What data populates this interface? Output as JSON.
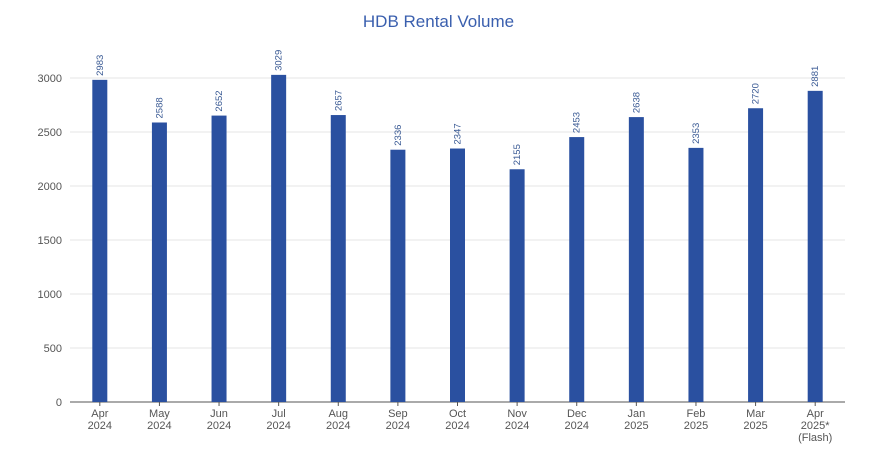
{
  "chart_data": {
    "type": "bar",
    "title": "HDB Rental Volume",
    "xlabel": "",
    "ylabel": "",
    "ylim": [
      0,
      3000
    ],
    "yticks": [
      0,
      500,
      1000,
      1500,
      2000,
      2500,
      3000
    ],
    "grid": true,
    "categories": [
      [
        "Apr",
        "2024"
      ],
      [
        "May",
        "2024"
      ],
      [
        "Jun",
        "2024"
      ],
      [
        "Jul",
        "2024"
      ],
      [
        "Aug",
        "2024"
      ],
      [
        "Sep",
        "2024"
      ],
      [
        "Oct",
        "2024"
      ],
      [
        "Nov",
        "2024"
      ],
      [
        "Dec",
        "2024"
      ],
      [
        "Jan",
        "2025"
      ],
      [
        "Feb",
        "2025"
      ],
      [
        "Mar",
        "2025"
      ],
      [
        "Apr",
        "2025*",
        "(Flash)"
      ]
    ],
    "values": [
      2983,
      2588,
      2652,
      3029,
      2657,
      2336,
      2347,
      2155,
      2453,
      2638,
      2353,
      2720,
      2881
    ],
    "colors": {
      "bar": "#2a50a0",
      "data_label": "#3a5a94",
      "title": "#3a5fae",
      "grid": "#e6e6e6",
      "axis": "#555555"
    }
  }
}
